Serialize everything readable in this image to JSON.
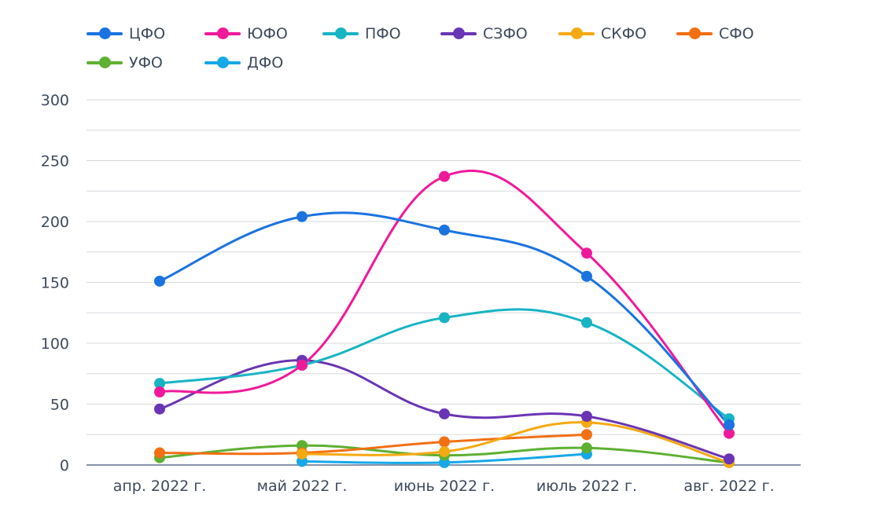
{
  "chart_data": {
    "type": "line",
    "title": "",
    "xlabel": "",
    "ylabel": "",
    "categories": [
      "апр. 2022 г.",
      "май 2022 г.",
      "июнь 2022 г.",
      "июль 2022 г.",
      "авг. 2022 г."
    ],
    "ylim": [
      0,
      300
    ],
    "yticks": [
      0,
      50,
      100,
      150,
      200,
      250,
      300
    ],
    "grid": true,
    "smooth": true,
    "legend_position": "top-left",
    "series": [
      {
        "name": "ЦФО",
        "color": "#1a73e0",
        "values": [
          151,
          204,
          193,
          155,
          33
        ]
      },
      {
        "name": "ЮФО",
        "color": "#f0199a",
        "values": [
          60,
          82,
          237,
          174,
          26
        ]
      },
      {
        "name": "ПФО",
        "color": "#17b4c4",
        "values": [
          67,
          82,
          121,
          117,
          38
        ]
      },
      {
        "name": "СЗФО",
        "color": "#6a35b5",
        "values": [
          46,
          86,
          42,
          40,
          5
        ]
      },
      {
        "name": "СКФО",
        "color": "#f5a912",
        "values": [
          null,
          9,
          11,
          35,
          2
        ]
      },
      {
        "name": "СФО",
        "color": "#f26f12",
        "values": [
          10,
          10,
          19,
          25,
          null
        ]
      },
      {
        "name": "УФО",
        "color": "#5db032",
        "values": [
          6,
          16,
          8,
          14,
          2
        ]
      },
      {
        "name": "ДФО",
        "color": "#16a8e8",
        "values": [
          null,
          3,
          2,
          9,
          null
        ]
      }
    ]
  }
}
